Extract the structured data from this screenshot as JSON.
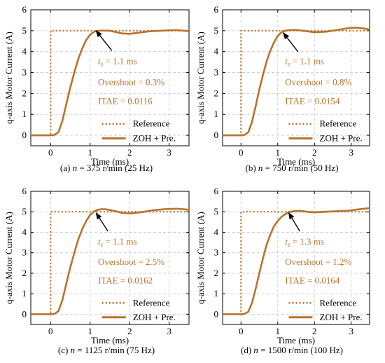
{
  "colors": {
    "series": "#b8732e",
    "grid": "#c8c8c8",
    "axis": "#000000",
    "arrow": "#000000"
  },
  "chart_data": [
    {
      "type": "line",
      "caption": "(a)  n = 375 r/min  (25 Hz)",
      "xlabel": "Time (ms)",
      "ylabel": "q-axis Motor Current (A)",
      "xlim": [
        -0.5,
        3.5
      ],
      "ylim": [
        -0.5,
        6
      ],
      "xticks": [
        0,
        1,
        2,
        3
      ],
      "yticks": [
        0,
        1,
        2,
        3,
        4,
        5,
        6
      ],
      "grid": true,
      "legend_position": "bottom-right",
      "annotations": [
        "tₓ = 1.1 ms",
        "Overshoot = 0.3%",
        "ITAE = 0.0116"
      ],
      "arrow_to": [
        1.15,
        5.0
      ],
      "arrow_from": [
        1.55,
        4.05
      ],
      "series": [
        {
          "name": "Reference",
          "style": "dotted",
          "x": [
            -0.5,
            0.0,
            0.0,
            3.5
          ],
          "y": [
            0,
            0,
            5,
            5
          ]
        },
        {
          "name": "ZOH + Pre.",
          "style": "solid",
          "x": [
            -0.5,
            0.0,
            0.1,
            0.2,
            0.3,
            0.4,
            0.5,
            0.6,
            0.7,
            0.8,
            0.9,
            1.0,
            1.1,
            1.2,
            1.3,
            1.5,
            1.8,
            2.0,
            2.2,
            2.5,
            2.8,
            3.0,
            3.2,
            3.5
          ],
          "y": [
            0,
            0,
            0.02,
            0.15,
            0.7,
            1.5,
            2.3,
            3.0,
            3.65,
            4.15,
            4.55,
            4.82,
            4.95,
            5.0,
            5.01,
            5.0,
            4.87,
            4.85,
            4.9,
            4.97,
            5.0,
            5.02,
            5.03,
            4.98
          ]
        }
      ]
    },
    {
      "type": "line",
      "caption": "(b)  n = 750 r/min  (50 Hz)",
      "xlabel": "Time (ms)",
      "ylabel": "q-axis Motor Current (A)",
      "xlim": [
        -0.5,
        3.5
      ],
      "ylim": [
        -0.5,
        6
      ],
      "xticks": [
        0,
        1,
        2,
        3
      ],
      "yticks": [
        0,
        1,
        2,
        3,
        4,
        5,
        6
      ],
      "grid": true,
      "legend_position": "bottom-right",
      "annotations": [
        "tₓ = 1.1 ms",
        "Overshoot = 0.8%",
        "ITAE = 0.0154"
      ],
      "arrow_to": [
        1.15,
        4.9
      ],
      "arrow_from": [
        1.55,
        4.0
      ],
      "series": [
        {
          "name": "Reference",
          "style": "dotted",
          "x": [
            -0.5,
            0.0,
            0.0,
            3.5
          ],
          "y": [
            0,
            0,
            5,
            5
          ]
        },
        {
          "name": "ZOH + Pre.",
          "style": "solid",
          "x": [
            -0.5,
            0.0,
            0.1,
            0.2,
            0.3,
            0.4,
            0.5,
            0.6,
            0.7,
            0.8,
            0.9,
            1.0,
            1.1,
            1.2,
            1.3,
            1.5,
            1.8,
            2.0,
            2.3,
            2.6,
            2.9,
            3.1,
            3.3,
            3.5
          ],
          "y": [
            0,
            0,
            0.02,
            0.15,
            0.65,
            1.4,
            2.2,
            2.9,
            3.55,
            4.05,
            4.45,
            4.75,
            4.92,
            5.0,
            5.03,
            5.04,
            4.97,
            4.93,
            4.95,
            5.03,
            5.12,
            5.15,
            5.12,
            5.06
          ]
        }
      ]
    },
    {
      "type": "line",
      "caption": "(c)  n = 1125 r/min  (75 Hz)",
      "xlabel": "Time (ms)",
      "ylabel": "q-axis Motor Current (A)",
      "xlim": [
        -0.5,
        3.5
      ],
      "ylim": [
        -0.5,
        6
      ],
      "xticks": [
        0,
        1,
        2,
        3
      ],
      "yticks": [
        0,
        1,
        2,
        3,
        4,
        5,
        6
      ],
      "grid": true,
      "legend_position": "bottom-right",
      "annotations": [
        "tₓ = 1.1 ms",
        "Overshoot = 2.5%",
        "ITAE = 0.0162"
      ],
      "arrow_to": [
        1.15,
        4.95
      ],
      "arrow_from": [
        1.45,
        4.05
      ],
      "series": [
        {
          "name": "Reference",
          "style": "dotted",
          "x": [
            -0.5,
            0.0,
            0.0,
            3.5
          ],
          "y": [
            0,
            0,
            5,
            5
          ]
        },
        {
          "name": "ZOH + Pre.",
          "style": "solid",
          "x": [
            -0.5,
            0.0,
            0.1,
            0.2,
            0.3,
            0.4,
            0.5,
            0.6,
            0.7,
            0.8,
            0.9,
            1.0,
            1.1,
            1.2,
            1.3,
            1.4,
            1.6,
            1.8,
            2.0,
            2.3,
            2.6,
            2.9,
            3.2,
            3.5
          ],
          "y": [
            0,
            0,
            0.02,
            0.15,
            0.7,
            1.5,
            2.3,
            3.0,
            3.65,
            4.15,
            4.55,
            4.85,
            5.02,
            5.1,
            5.13,
            5.12,
            5.05,
            4.95,
            4.92,
            4.98,
            5.08,
            5.13,
            5.15,
            5.1
          ]
        }
      ]
    },
    {
      "type": "line",
      "caption": "(d)  n = 1500 r/min  (100 Hz)",
      "xlabel": "Time (ms)",
      "ylabel": "q-axis Motor Current (A)",
      "xlim": [
        -0.5,
        3.5
      ],
      "ylim": [
        -0.5,
        6
      ],
      "xticks": [
        0,
        1,
        2,
        3
      ],
      "yticks": [
        0,
        1,
        2,
        3,
        4,
        5,
        6
      ],
      "grid": true,
      "legend_position": "bottom-right",
      "annotations": [
        "tₓ = 1.3 ms",
        "Overshoot = 1.2%",
        "ITAE = 0.0164"
      ],
      "arrow_to": [
        1.3,
        4.95
      ],
      "arrow_from": [
        1.6,
        4.05
      ],
      "series": [
        {
          "name": "Reference",
          "style": "dotted",
          "x": [
            -0.5,
            0.0,
            0.0,
            3.5
          ],
          "y": [
            0,
            0,
            5,
            5
          ]
        },
        {
          "name": "ZOH + Pre.",
          "style": "solid",
          "x": [
            -0.5,
            0.0,
            0.1,
            0.2,
            0.3,
            0.4,
            0.5,
            0.6,
            0.7,
            0.8,
            0.9,
            1.0,
            1.1,
            1.2,
            1.3,
            1.4,
            1.6,
            1.8,
            2.0,
            2.3,
            2.6,
            2.9,
            3.2,
            3.5
          ],
          "y": [
            0,
            0,
            0.02,
            0.12,
            0.55,
            1.25,
            2.0,
            2.75,
            3.4,
            3.9,
            4.3,
            4.55,
            4.75,
            4.88,
            4.97,
            5.02,
            5.05,
            5.0,
            4.97,
            5.0,
            5.03,
            5.05,
            5.12,
            5.18
          ]
        }
      ]
    }
  ]
}
